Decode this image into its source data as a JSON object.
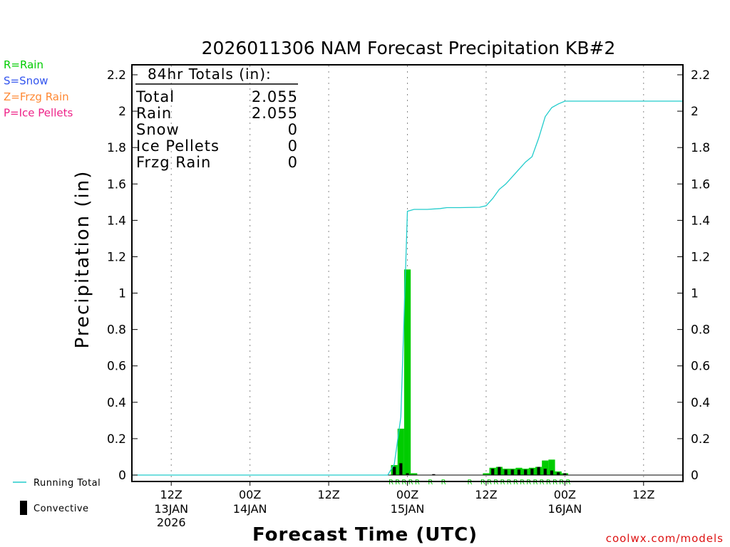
{
  "chart_data": {
    "type": "bar",
    "title": "2026011306 NAM Forecast Precipitation KB#2",
    "xlabel": "Forecast Time (UTC)",
    "ylabel": "Precipitation (in)",
    "ylim": [
      0,
      2.2
    ],
    "yticks": [
      "0",
      "0.2",
      "0.4",
      "0.6",
      "0.8",
      "1",
      "1.2",
      "1.4",
      "1.6",
      "1.8",
      "2",
      "2.2"
    ],
    "x_unit": "hours from 2026-01-13 06Z",
    "xlim": [
      0,
      84
    ],
    "x_ticks": [
      {
        "x": 6,
        "label": "12Z",
        "day": "13JAN",
        "year": "2026"
      },
      {
        "x": 18,
        "label": "00Z",
        "day": "14JAN",
        "year": ""
      },
      {
        "x": 30,
        "label": "12Z",
        "day": "",
        "year": ""
      },
      {
        "x": 42,
        "label": "00Z",
        "day": "15JAN",
        "year": ""
      },
      {
        "x": 54,
        "label": "12Z",
        "day": "",
        "year": ""
      },
      {
        "x": 66,
        "label": "00Z",
        "day": "16JAN",
        "year": ""
      },
      {
        "x": 78,
        "label": "12Z",
        "day": "",
        "year": ""
      }
    ],
    "grid": "vertical-dotted",
    "legend_types": [
      {
        "label": "R=Rain",
        "color": "#00cc00"
      },
      {
        "label": "S=Snow",
        "color": "#3355ee"
      },
      {
        "label": "Z=Frzg Rain",
        "color": "#ff8833"
      },
      {
        "label": "P=Ice Pellets",
        "color": "#ee2288"
      }
    ],
    "legend_bottom": {
      "running_total": "Running Total",
      "convective": "Convective"
    },
    "totals": {
      "header": "84hr Totals (in):",
      "rows": [
        {
          "label": "Total",
          "value": "2.055"
        },
        {
          "label": "Rain",
          "value": "2.055"
        },
        {
          "label": "Snow",
          "value": "0"
        },
        {
          "label": "Ice Pellets",
          "value": "0"
        },
        {
          "label": "Frzg Rain",
          "value": "0"
        }
      ]
    },
    "series": [
      {
        "name": "Rain",
        "type": "bar",
        "color": "#00cc00",
        "points": [
          {
            "x": 40,
            "y": 0.055
          },
          {
            "x": 41,
            "y": 0.255
          },
          {
            "x": 42,
            "y": 1.13
          },
          {
            "x": 43,
            "y": 0.01
          },
          {
            "x": 54,
            "y": 0.01
          },
          {
            "x": 55,
            "y": 0.04
          },
          {
            "x": 56,
            "y": 0.045
          },
          {
            "x": 57,
            "y": 0.035
          },
          {
            "x": 58,
            "y": 0.035
          },
          {
            "x": 59,
            "y": 0.04
          },
          {
            "x": 60,
            "y": 0.035
          },
          {
            "x": 61,
            "y": 0.04
          },
          {
            "x": 62,
            "y": 0.045
          },
          {
            "x": 63,
            "y": 0.08
          },
          {
            "x": 64,
            "y": 0.085
          },
          {
            "x": 65,
            "y": 0.02
          },
          {
            "x": 66,
            "y": 0.01
          }
        ]
      },
      {
        "name": "Convective",
        "type": "bar",
        "color": "#000000",
        "points": [
          {
            "x": 40,
            "y": 0.045
          },
          {
            "x": 41,
            "y": 0.065
          },
          {
            "x": 42,
            "y": 0.01
          },
          {
            "x": 46,
            "y": 0.005
          },
          {
            "x": 55,
            "y": 0.035
          },
          {
            "x": 56,
            "y": 0.045
          },
          {
            "x": 57,
            "y": 0.03
          },
          {
            "x": 58,
            "y": 0.03
          },
          {
            "x": 59,
            "y": 0.03
          },
          {
            "x": 60,
            "y": 0.03
          },
          {
            "x": 61,
            "y": 0.035
          },
          {
            "x": 62,
            "y": 0.045
          },
          {
            "x": 63,
            "y": 0.035
          },
          {
            "x": 64,
            "y": 0.025
          },
          {
            "x": 65,
            "y": 0.015
          },
          {
            "x": 66,
            "y": 0.01
          }
        ]
      },
      {
        "name": "Running Total",
        "type": "line",
        "color": "#22cccc",
        "points": [
          {
            "x": 0,
            "y": 0
          },
          {
            "x": 39,
            "y": 0
          },
          {
            "x": 40,
            "y": 0.06
          },
          {
            "x": 41,
            "y": 0.32
          },
          {
            "x": 42,
            "y": 1.45
          },
          {
            "x": 43,
            "y": 1.46
          },
          {
            "x": 45,
            "y": 1.46
          },
          {
            "x": 47,
            "y": 1.465
          },
          {
            "x": 48,
            "y": 1.47
          },
          {
            "x": 50,
            "y": 1.47
          },
          {
            "x": 53,
            "y": 1.472
          },
          {
            "x": 54,
            "y": 1.48
          },
          {
            "x": 55,
            "y": 1.52
          },
          {
            "x": 56,
            "y": 1.57
          },
          {
            "x": 57,
            "y": 1.6
          },
          {
            "x": 58,
            "y": 1.64
          },
          {
            "x": 59,
            "y": 1.68
          },
          {
            "x": 60,
            "y": 1.72
          },
          {
            "x": 61,
            "y": 1.75
          },
          {
            "x": 62,
            "y": 1.85
          },
          {
            "x": 63,
            "y": 1.97
          },
          {
            "x": 64,
            "y": 2.02
          },
          {
            "x": 65,
            "y": 2.04
          },
          {
            "x": 66,
            "y": 2.055
          },
          {
            "x": 84,
            "y": 2.055
          }
        ]
      }
    ],
    "type_codes": [
      {
        "x": 39.5,
        "code": "R"
      },
      {
        "x": 40.5,
        "code": "R"
      },
      {
        "x": 41.5,
        "code": "R"
      },
      {
        "x": 42.5,
        "code": "R"
      },
      {
        "x": 43.5,
        "code": "R"
      },
      {
        "x": 45.5,
        "code": "R"
      },
      {
        "x": 47.5,
        "code": "R"
      },
      {
        "x": 51.5,
        "code": "R"
      },
      {
        "x": 53.5,
        "code": "R"
      },
      {
        "x": 54.5,
        "code": "R"
      },
      {
        "x": 55.5,
        "code": "R"
      },
      {
        "x": 56.5,
        "code": "R"
      },
      {
        "x": 57.5,
        "code": "R"
      },
      {
        "x": 58.5,
        "code": "R"
      },
      {
        "x": 59.5,
        "code": "R"
      },
      {
        "x": 60.5,
        "code": "R"
      },
      {
        "x": 61.5,
        "code": "R"
      },
      {
        "x": 62.5,
        "code": "R"
      },
      {
        "x": 63.5,
        "code": "R"
      },
      {
        "x": 64.5,
        "code": "R"
      },
      {
        "x": 65.5,
        "code": "R"
      },
      {
        "x": 66.5,
        "code": "R"
      }
    ],
    "credit": "coolwx.com/models"
  }
}
